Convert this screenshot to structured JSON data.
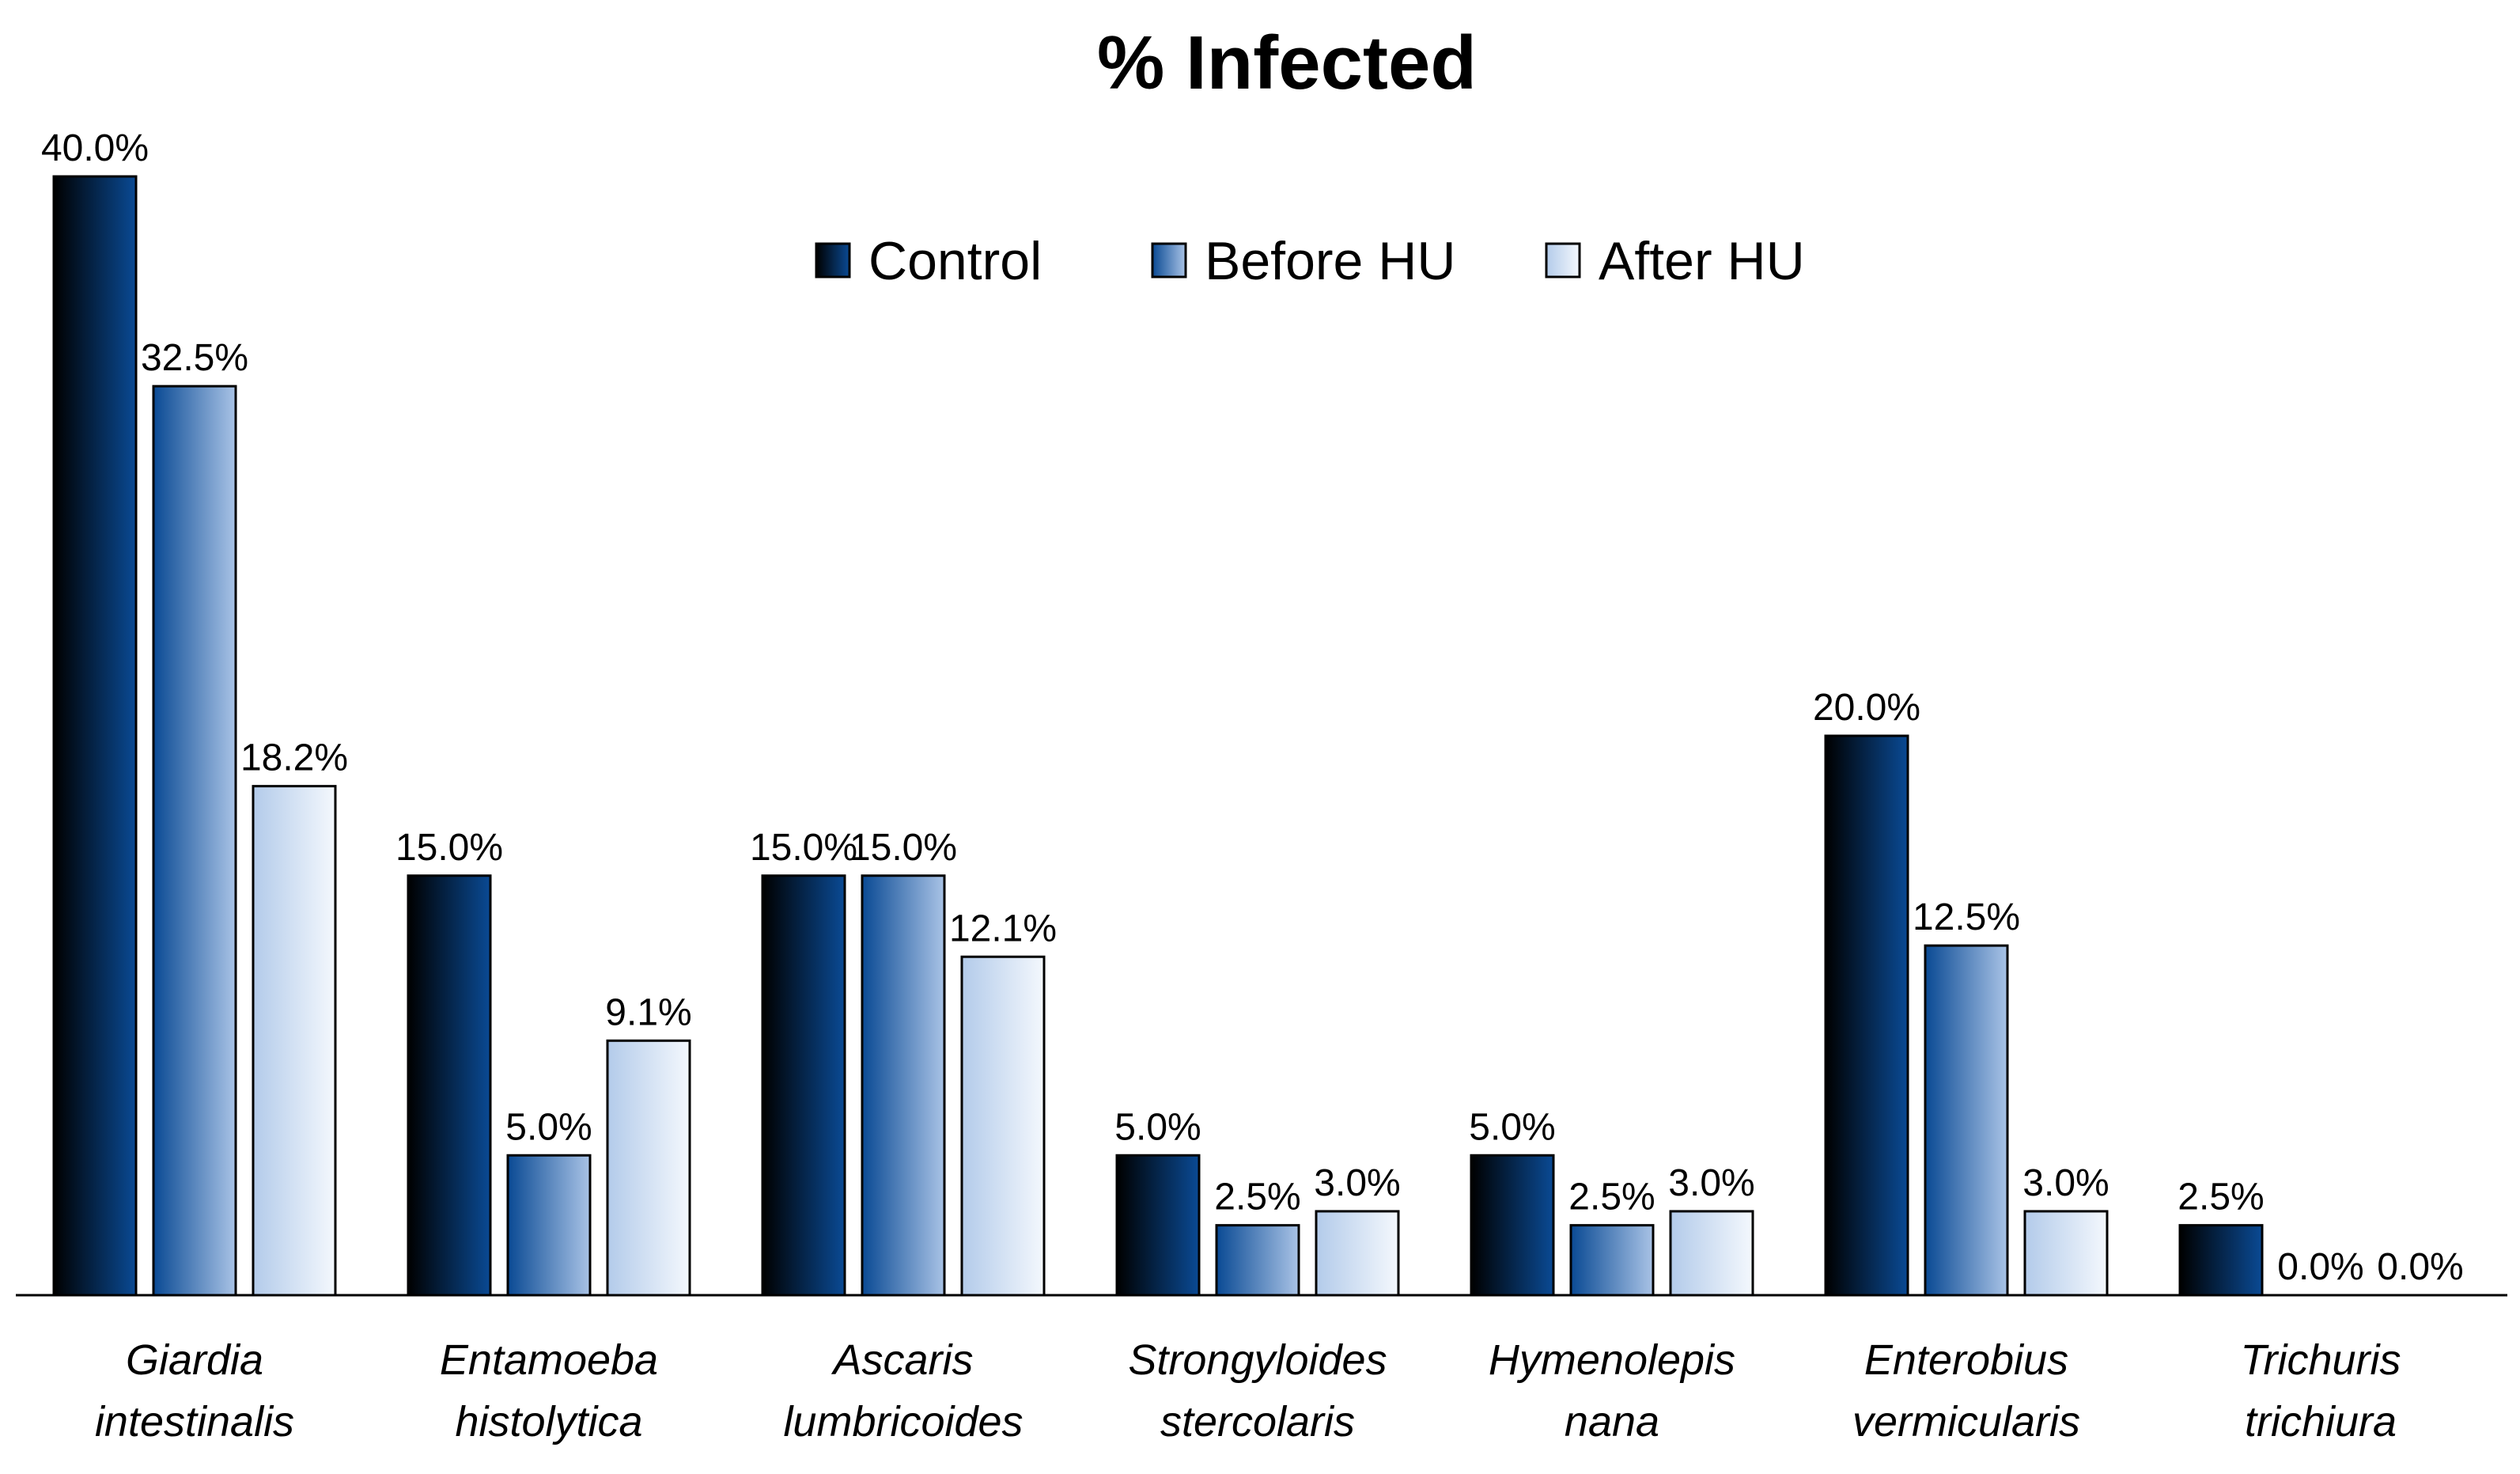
{
  "chart_data": {
    "type": "bar",
    "title": "% Infected",
    "xlabel": "",
    "ylabel": "",
    "ylim": [
      0,
      40
    ],
    "grid": false,
    "legend_position": "top-center",
    "categories": [
      [
        "Giardia",
        "intestinalis"
      ],
      [
        "Entamoeba",
        "histolytica"
      ],
      [
        "Ascaris",
        "lumbricoides"
      ],
      [
        "Strongyloides",
        "stercolaris"
      ],
      [
        "Hymenolepis",
        "nana"
      ],
      [
        "Enterobius",
        "vermicularis"
      ],
      [
        "Trichuris",
        "trichiura"
      ]
    ],
    "series": [
      {
        "name": "Control",
        "color_dark": "#000000",
        "color_light": "#0a4a94",
        "values": [
          40.0,
          15.0,
          15.0,
          5.0,
          5.0,
          20.0,
          2.5
        ],
        "labels": [
          "40.0%",
          "15.0%",
          "15.0%",
          "5.0%",
          "5.0%",
          "20.0%",
          "2.5%"
        ]
      },
      {
        "name": "Before HU",
        "color_dark": "#0a4a94",
        "color_light": "#a9c3e6",
        "values": [
          32.5,
          5.0,
          15.0,
          2.5,
          2.5,
          12.5,
          0.0
        ],
        "labels": [
          "32.5%",
          "5.0%",
          "15.0%",
          "2.5%",
          "2.5%",
          "12.5%",
          "0.0%"
        ]
      },
      {
        "name": "After HU",
        "color_dark": "#b3cbea",
        "color_light": "#f4f8fd",
        "values": [
          18.2,
          9.1,
          12.1,
          3.0,
          3.0,
          3.0,
          0.0
        ],
        "labels": [
          "18.2%",
          "9.1%",
          "12.1%",
          "3.0%",
          "3.0%",
          "3.0%",
          "0.0%"
        ]
      }
    ]
  }
}
